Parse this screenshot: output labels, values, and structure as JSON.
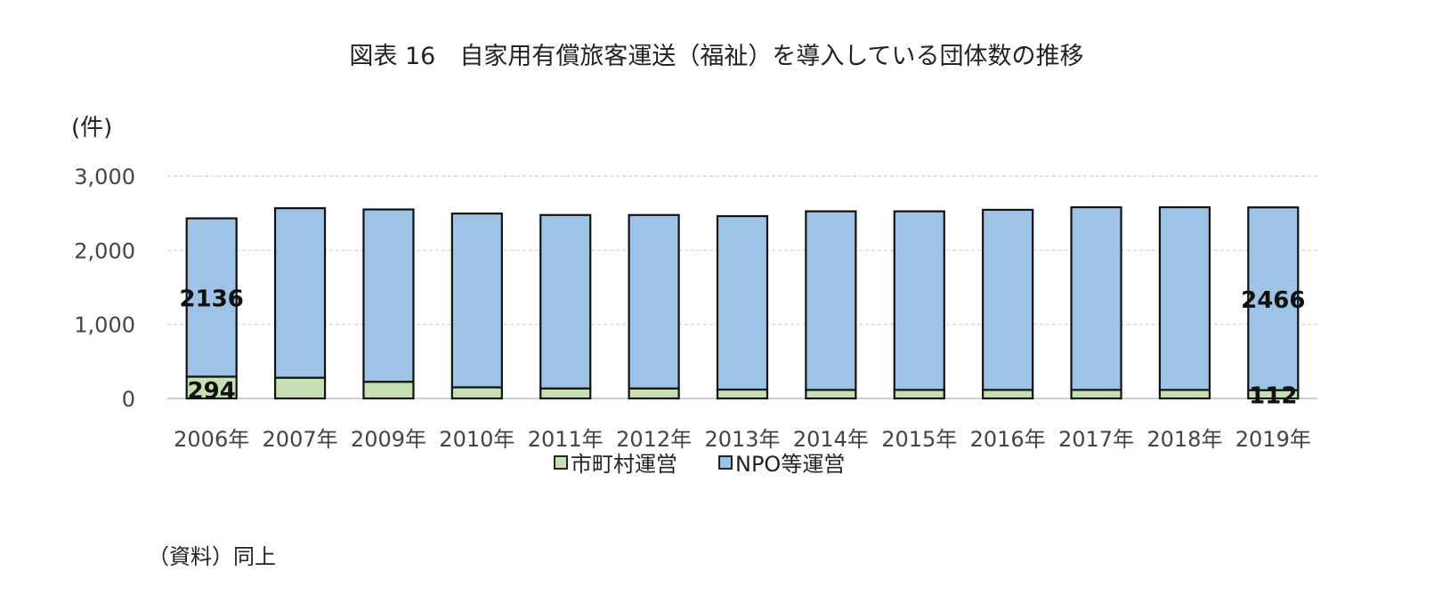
{
  "chart_data": {
    "type": "bar",
    "stacked": true,
    "title": "図表 16　自家用有償旅客運送（福祉）を導入している団体数の推移",
    "ylabel": "(件)",
    "xlabel": "",
    "ylim": [
      0,
      3000
    ],
    "yticks": [
      0,
      1000,
      2000,
      3000
    ],
    "ytick_labels": [
      "0",
      "1,000",
      "2,000",
      "3,000"
    ],
    "grid": true,
    "legend_position": "bottom",
    "categories": [
      "2006年",
      "2007年",
      "2009年",
      "2010年",
      "2011年",
      "2012年",
      "2013年",
      "2014年",
      "2015年",
      "2016年",
      "2017年",
      "2018年",
      "2019年"
    ],
    "series": [
      {
        "name": "市町村運営",
        "color": "#c6e0b4",
        "values": [
          294,
          280,
          225,
          150,
          135,
          135,
          120,
          115,
          115,
          115,
          115,
          115,
          112
        ]
      },
      {
        "name": "NPO等運営",
        "color": "#9dc3e6",
        "values": [
          2136,
          2287,
          2325,
          2345,
          2340,
          2340,
          2340,
          2410,
          2410,
          2430,
          2465,
          2465,
          2466
        ]
      }
    ],
    "data_labels": [
      {
        "series": 0,
        "index": 0,
        "text": "294"
      },
      {
        "series": 1,
        "index": 0,
        "text": "2136"
      },
      {
        "series": 1,
        "index": 12,
        "text": "2466"
      },
      {
        "series": 0,
        "index": 12,
        "text": "112"
      }
    ]
  },
  "source_note": "（資料）同上"
}
